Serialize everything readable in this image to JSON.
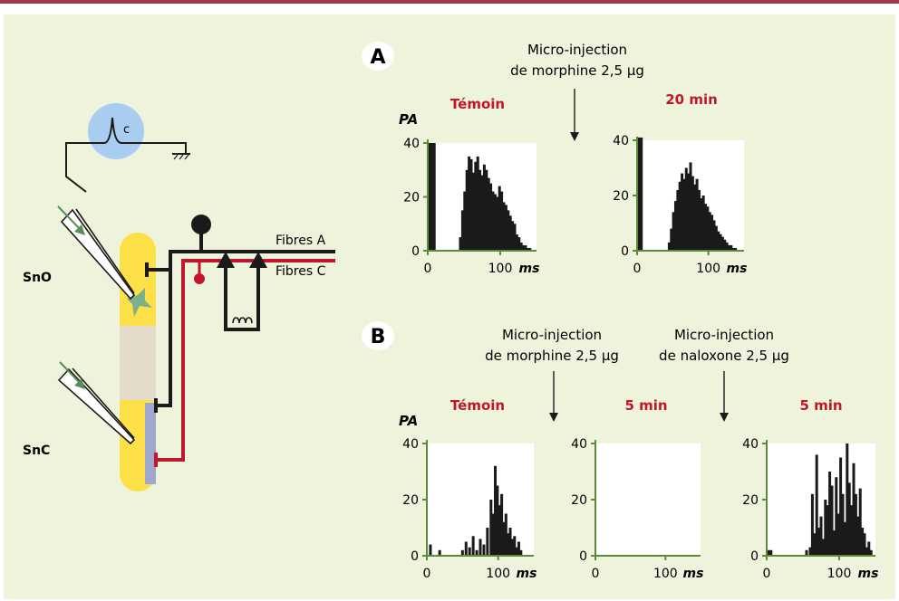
{
  "colors": {
    "accent": "#c0172d",
    "panel_bg": "#eef3dc",
    "top_bar": "#9b3a4c",
    "nucleus_yellow": "#fde047",
    "nucleus_grey": "#e3dccb",
    "recorder_blue": "#a9cdf0",
    "bar": "#1a1a1a",
    "axis_green": "#5c8a3a"
  },
  "schema": {
    "recorder_label": "c",
    "sno_label": "SnO",
    "snc_label": "SnC",
    "fibres_a_label": "Fibres A",
    "fibres_c_label": "Fibres C"
  },
  "panel_a": {
    "letter": "A",
    "annotation_line1": "Micro-injection",
    "annotation_line2": "de morphine 2,5 µg"
  },
  "panel_b": {
    "letter": "B",
    "annotation1_line1": "Micro-injection",
    "annotation1_line2": "de morphine 2,5 µg",
    "annotation2_line1": "Micro-injection",
    "annotation2_line2": "de naloxone 2,5 µg"
  },
  "chart_data": [
    {
      "type": "bar",
      "title": "Témoin",
      "ylabel": "PA",
      "xlabel": "ms",
      "ylim": [
        0,
        40
      ],
      "xlim": [
        0,
        150
      ],
      "yticks": [
        "0",
        "20",
        "40"
      ],
      "xticks": [
        "0",
        "100"
      ],
      "x": [
        3,
        6,
        9,
        45,
        48,
        51,
        54,
        57,
        60,
        63,
        66,
        69,
        72,
        75,
        78,
        81,
        84,
        87,
        90,
        93,
        96,
        99,
        102,
        105,
        108,
        111,
        114,
        117,
        120,
        123,
        126,
        129,
        132,
        135,
        138,
        141
      ],
      "values": [
        40,
        40,
        40,
        5,
        15,
        22,
        30,
        35,
        34,
        29,
        33,
        35,
        30,
        28,
        32,
        30,
        27,
        25,
        22,
        21,
        20,
        24,
        22,
        18,
        17,
        15,
        13,
        11,
        10,
        6,
        5,
        3,
        2,
        2,
        1,
        1
      ]
    },
    {
      "type": "bar",
      "title": "20 min",
      "ylabel": "",
      "xlabel": "ms",
      "ylim": [
        0,
        40
      ],
      "xlim": [
        0,
        150
      ],
      "yticks": [
        "0",
        "20",
        "40"
      ],
      "xticks": [
        "0",
        "100"
      ],
      "x": [
        3,
        6,
        45,
        48,
        51,
        54,
        57,
        60,
        63,
        66,
        69,
        72,
        75,
        78,
        81,
        84,
        87,
        90,
        93,
        96,
        99,
        102,
        105,
        108,
        111,
        114,
        117,
        120,
        123,
        126,
        129,
        132,
        135,
        138
      ],
      "values": [
        41,
        41,
        3,
        8,
        14,
        18,
        22,
        25,
        28,
        26,
        30,
        28,
        32,
        27,
        24,
        26,
        22,
        19,
        20,
        17,
        16,
        14,
        13,
        11,
        9,
        7,
        6,
        5,
        4,
        3,
        2,
        2,
        1,
        1
      ]
    },
    {
      "type": "bar",
      "title": "Témoin",
      "ylabel": "PA",
      "xlabel": "ms",
      "ylim": [
        0,
        40
      ],
      "xlim": [
        0,
        150
      ],
      "yticks": [
        "0",
        "20",
        "40"
      ],
      "xticks": [
        "0",
        "100"
      ],
      "x": [
        5,
        18,
        50,
        55,
        60,
        65,
        70,
        75,
        80,
        85,
        90,
        93,
        96,
        99,
        102,
        105,
        108,
        111,
        114,
        117,
        120,
        123,
        126,
        129,
        132
      ],
      "values": [
        4,
        2,
        2,
        5,
        3,
        7,
        2,
        6,
        4,
        10,
        20,
        15,
        32,
        25,
        18,
        22,
        12,
        15,
        8,
        10,
        6,
        7,
        3,
        5,
        2
      ]
    },
    {
      "type": "bar",
      "title": "5 min",
      "ylabel": "",
      "xlabel": "ms",
      "ylim": [
        0,
        40
      ],
      "xlim": [
        0,
        150
      ],
      "yticks": [
        "0",
        "20",
        "40"
      ],
      "xticks": [
        "0",
        "100"
      ],
      "x": [],
      "values": []
    },
    {
      "type": "bar",
      "title": "5 min",
      "ylabel": "",
      "xlabel": "ms",
      "ylim": [
        0,
        40
      ],
      "xlim": [
        0,
        150
      ],
      "yticks": [
        "0",
        "20",
        "40"
      ],
      "xticks": [
        "0",
        "100"
      ],
      "x": [
        3,
        6,
        55,
        60,
        63,
        66,
        69,
        72,
        75,
        78,
        81,
        84,
        87,
        90,
        93,
        96,
        99,
        102,
        105,
        108,
        111,
        114,
        117,
        120,
        123,
        126,
        129,
        132,
        135,
        138,
        141,
        144
      ],
      "values": [
        2,
        2,
        2,
        3,
        22,
        8,
        36,
        10,
        14,
        6,
        20,
        18,
        30,
        25,
        9,
        28,
        15,
        35,
        22,
        12,
        40,
        26,
        18,
        33,
        22,
        14,
        24,
        10,
        8,
        3,
        5,
        2
      ]
    }
  ]
}
